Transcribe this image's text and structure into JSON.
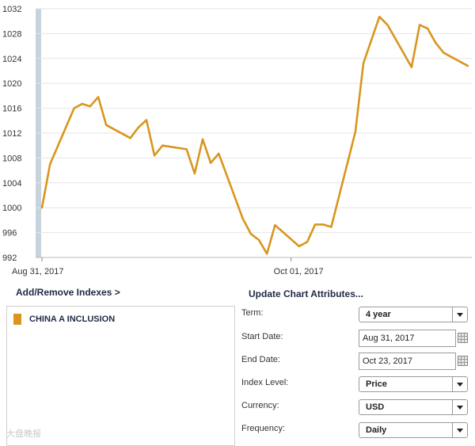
{
  "chart_data": {
    "type": "line",
    "y_ticks": [
      992,
      996,
      1000,
      1004,
      1008,
      1012,
      1016,
      1020,
      1024,
      1028,
      1032
    ],
    "ylim": [
      992,
      1032
    ],
    "x_tick_labels": [
      "Aug 31, 2017",
      "Oct 01, 2017"
    ],
    "x_tick_dates": [
      "2017-08-31",
      "2017-10-01"
    ],
    "grid": true,
    "line_color": "#d8961e",
    "series": [
      {
        "dates": [
          "2017-08-31",
          "2017-09-01",
          "2017-09-04",
          "2017-09-05",
          "2017-09-06",
          "2017-09-07",
          "2017-09-08",
          "2017-09-11",
          "2017-09-12",
          "2017-09-13",
          "2017-09-14",
          "2017-09-15",
          "2017-09-18",
          "2017-09-19",
          "2017-09-20",
          "2017-09-21",
          "2017-09-22",
          "2017-09-25",
          "2017-09-26",
          "2017-09-27",
          "2017-09-28",
          "2017-09-29",
          "2017-10-02",
          "2017-10-03",
          "2017-10-04",
          "2017-10-05",
          "2017-10-06",
          "2017-10-09",
          "2017-10-10",
          "2017-10-11",
          "2017-10-12",
          "2017-10-13",
          "2017-10-16",
          "2017-10-17",
          "2017-10-18",
          "2017-10-19",
          "2017-10-20",
          "2017-10-23"
        ],
        "values": [
          1000.0,
          1007.0,
          1016.0,
          1016.7,
          1016.3,
          1017.8,
          1013.3,
          1011.2,
          1012.9,
          1014.1,
          1008.4,
          1010.0,
          1009.4,
          1005.5,
          1011.0,
          1007.2,
          1008.7,
          998.2,
          995.8,
          994.8,
          992.6,
          997.2,
          993.8,
          994.5,
          997.3,
          997.3,
          996.9,
          1012.2,
          1023.2,
          1027.0,
          1030.7,
          1029.4,
          1022.6,
          1029.4,
          1028.8,
          1026.5,
          1024.9,
          1022.8
        ]
      }
    ]
  },
  "left_panel": {
    "link": "Add/Remove Indexes >",
    "legend": [
      {
        "label": "CHINA A INCLUSION",
        "color": "#d8961e"
      }
    ]
  },
  "attributes": {
    "title": "Update Chart Attributes...",
    "term_label": "Term:",
    "term_value": "4 year",
    "start_label": "Start Date:",
    "start_value": "Aug 31, 2017",
    "end_label": "End Date:",
    "end_value": "Oct 23, 2017",
    "index_level_label": "Index Level:",
    "index_level_value": "Price",
    "currency_label": "Currency:",
    "currency_value": "USD",
    "frequency_label": "Frequency:",
    "frequency_value": "Daily"
  },
  "watermark": "大盘晚报"
}
